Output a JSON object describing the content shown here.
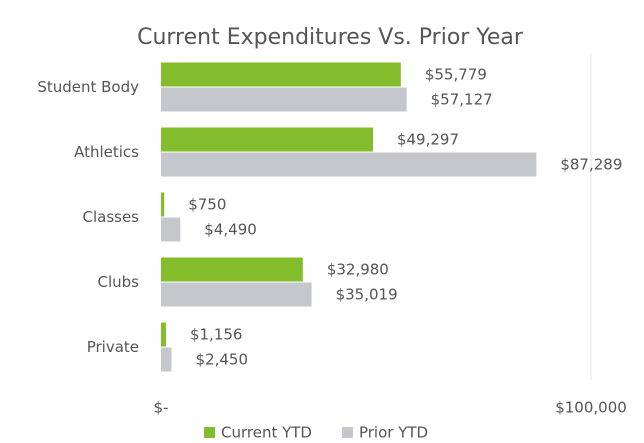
{
  "chart_data": {
    "type": "bar",
    "orientation": "horizontal",
    "title": "Current Expenditures Vs. Prior Year",
    "categories": [
      "Student Body",
      "Athletics",
      "Classes",
      "Clubs",
      "Private"
    ],
    "series": [
      {
        "name": "Current YTD",
        "color": "#84bd2b",
        "values": [
          55779,
          49297,
          750,
          32980,
          1156
        ],
        "value_labels": [
          "$55,779",
          "$49,297",
          "$750",
          "$32,980",
          "$1,156"
        ]
      },
      {
        "name": "Prior YTD",
        "color": "#c6c7cd",
        "values": [
          57127,
          87289,
          4490,
          35019,
          2450
        ],
        "value_labels": [
          "$57,127",
          "$87,289",
          "$4,490",
          "$35,019",
          "$2,450"
        ]
      }
    ],
    "xlim": [
      0,
      100000
    ],
    "xticks": [
      {
        "value": 0,
        "label": "$-"
      },
      {
        "value": 100000,
        "label": "$100,000"
      }
    ],
    "grid": true,
    "legend": "bottom"
  }
}
